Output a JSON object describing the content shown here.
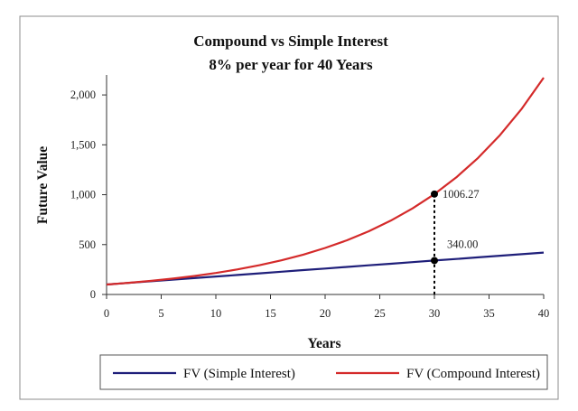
{
  "chart_data": {
    "type": "line",
    "title": "Compound vs Simple Interest",
    "subtitle": "8% per year for 40 Years",
    "xlabel": "Years",
    "ylabel": "Future Value",
    "xlim": [
      0,
      40
    ],
    "ylim": [
      0,
      2200
    ],
    "x_ticks": [
      0,
      5,
      10,
      15,
      20,
      25,
      30,
      35,
      40
    ],
    "y_ticks": [
      0,
      500,
      1000,
      1500,
      2000
    ],
    "y_tick_labels": [
      "0",
      "500",
      "1,000",
      "1,500",
      "2,000"
    ],
    "grid": false,
    "legend_position": "bottom",
    "x": [
      0,
      2,
      4,
      6,
      8,
      10,
      12,
      14,
      16,
      18,
      20,
      22,
      24,
      26,
      28,
      30,
      32,
      34,
      36,
      38,
      40
    ],
    "series": [
      {
        "name": "FV (Simple Interest)",
        "color": "#1f1f7a",
        "values": [
          100,
          116,
          132,
          148,
          164,
          180,
          196,
          212,
          228,
          244,
          260,
          276,
          292,
          308,
          324,
          340,
          356,
          372,
          388,
          404,
          420
        ]
      },
      {
        "name": "FV (Compound Interest)",
        "color": "#d42a2a",
        "values": [
          100,
          116.64,
          136.05,
          158.69,
          185.09,
          215.89,
          251.82,
          293.72,
          342.59,
          399.6,
          466.1,
          543.65,
          634.12,
          739.64,
          862.71,
          1006.27,
          1173.71,
          1369.02,
          1596.8,
          1862.5,
          2172.45
        ]
      }
    ],
    "annotations": [
      {
        "x": 30,
        "y": 1006.27,
        "label": "1006.27"
      },
      {
        "x": 30,
        "y": 340,
        "label": "340.00"
      }
    ]
  }
}
